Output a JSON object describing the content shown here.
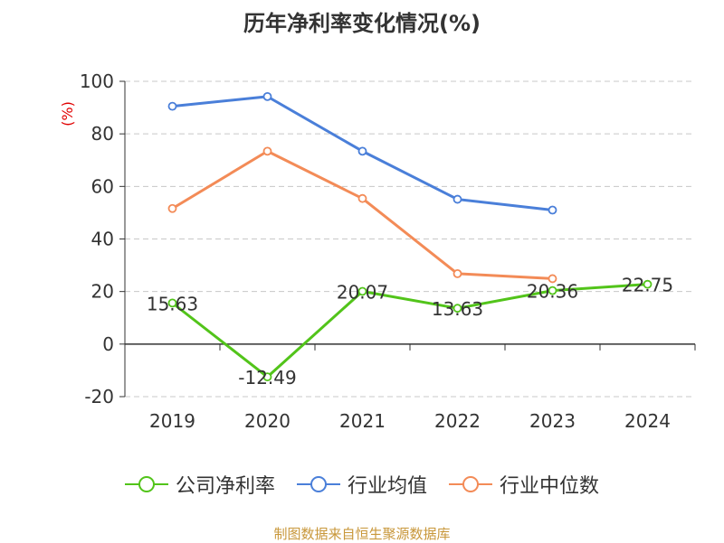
{
  "chart_data": {
    "type": "line",
    "title": "历年净利率变化情况(%)",
    "ylabel": "(%)",
    "categories": [
      "2019",
      "2020",
      "2021",
      "2022",
      "2023",
      "2024"
    ],
    "ylim": [
      -20,
      100
    ],
    "yticks": [
      -20,
      0,
      20,
      40,
      60,
      80,
      100
    ],
    "grid": true,
    "legend_position": "bottom",
    "series": [
      {
        "name": "公司净利率",
        "color": "#52c41a",
        "values": [
          15.63,
          -12.49,
          20.07,
          13.63,
          20.36,
          22.75
        ],
        "labels": [
          "15.63",
          "-12.49",
          "20.07",
          "13.63",
          "20.36",
          "22.75"
        ]
      },
      {
        "name": "行业均值",
        "color": "#4a7fd9",
        "values": [
          90.5,
          94.2,
          73.4,
          55.1,
          51.0,
          null
        ]
      },
      {
        "name": "行业中位数",
        "color": "#f38b57",
        "values": [
          51.6,
          73.4,
          55.4,
          26.8,
          24.9,
          null
        ]
      }
    ]
  },
  "footer": "制图数据来自恒生聚源数据库"
}
